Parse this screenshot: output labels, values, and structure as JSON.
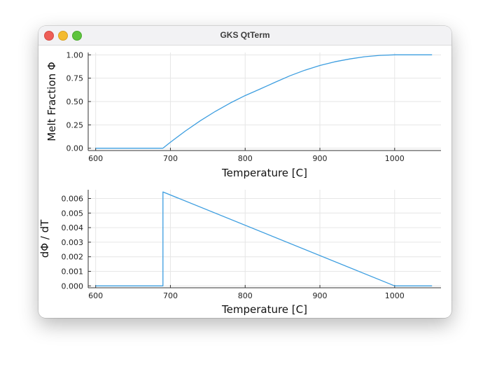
{
  "window": {
    "title": "GKS QtTerm"
  },
  "chart_data": [
    {
      "type": "line",
      "title": "",
      "xlabel": "Temperature [C]",
      "ylabel": "Melt Fraction Φ",
      "xlim": [
        590,
        1062
      ],
      "ylim": [
        -0.025,
        1.025
      ],
      "xticks": [
        600,
        700,
        800,
        900,
        1000
      ],
      "xtick_labels": [
        "600",
        "700",
        "800",
        "900",
        "1000"
      ],
      "yticks": [
        0,
        0.25,
        0.5,
        0.75,
        1.0
      ],
      "ytick_labels": [
        "0.00",
        "0.25",
        "0.50",
        "0.75",
        "1.00"
      ],
      "grid": true,
      "legend": "none",
      "color": "#3d9ee0",
      "x": [
        600,
        690,
        700,
        720,
        740,
        760,
        780,
        800,
        820,
        840,
        860,
        880,
        900,
        920,
        940,
        960,
        980,
        1000,
        1050
      ],
      "y": [
        0,
        0,
        0.064,
        0.184,
        0.294,
        0.394,
        0.484,
        0.564,
        0.634,
        0.706,
        0.776,
        0.836,
        0.886,
        0.926,
        0.956,
        0.98,
        0.994,
        1.0,
        1.0
      ]
    },
    {
      "type": "line",
      "title": "",
      "xlabel": "Temperature [C]",
      "ylabel": "dΦ / dT",
      "xlim": [
        590,
        1062
      ],
      "ylim": [
        -0.00013,
        0.0066
      ],
      "xticks": [
        600,
        700,
        800,
        900,
        1000
      ],
      "xtick_labels": [
        "600",
        "700",
        "800",
        "900",
        "1000"
      ],
      "yticks": [
        0,
        0.001,
        0.002,
        0.003,
        0.004,
        0.005,
        0.006
      ],
      "ytick_labels": [
        "0.000",
        "0.001",
        "0.002",
        "0.003",
        "0.004",
        "0.005",
        "0.006"
      ],
      "grid": true,
      "legend": "none",
      "color": "#3d9ee0",
      "x": [
        600,
        690,
        690,
        1000,
        1050
      ],
      "y": [
        0,
        0,
        0.00645,
        0,
        0
      ]
    }
  ]
}
